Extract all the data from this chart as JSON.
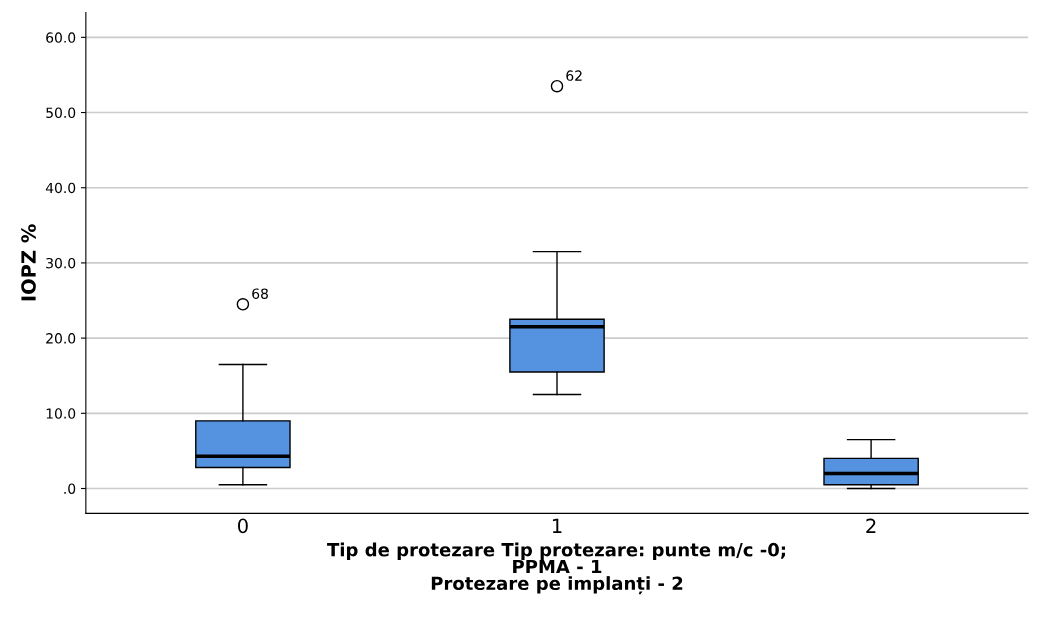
{
  "chart_data": {
    "type": "box",
    "categories": [
      "0",
      "1",
      "2"
    ],
    "series": [
      {
        "color": "#5592e0",
        "boxes": [
          {
            "low": 0.5,
            "q1": 2.8,
            "median": 4.3,
            "q3": 9.0,
            "high": 16.5,
            "outliers": [
              24.5
            ]
          },
          {
            "low": 12.5,
            "q1": 15.5,
            "median": 21.5,
            "q3": 22.5,
            "high": 31.5,
            "outliers": [
              53.5
            ]
          },
          {
            "low": 0.0,
            "q1": 0.5,
            "median": 2.0,
            "q3": 4.0,
            "high": 6.5
          }
        ]
      }
    ],
    "ylabel": "IOPZ %",
    "xlabel": "Tip de protezare Tip protezare: punte m/c -0;\nPPMA - 1\nProtezare pe implanți - 2",
    "ylim": [
      -3.3,
      63.3
    ],
    "yticks": [
      {
        "value": 0,
        "label": ".0"
      },
      {
        "value": 10,
        "label": "10.0"
      },
      {
        "value": 20,
        "label": "20.0"
      },
      {
        "value": 30,
        "label": "30.0"
      },
      {
        "value": 40,
        "label": "40.0"
      },
      {
        "value": 50,
        "label": "50.0"
      },
      {
        "value": 60,
        "label": "60.0"
      }
    ],
    "grid": "y",
    "marker": "circle",
    "annotations": [
      "68",
      "62"
    ]
  }
}
